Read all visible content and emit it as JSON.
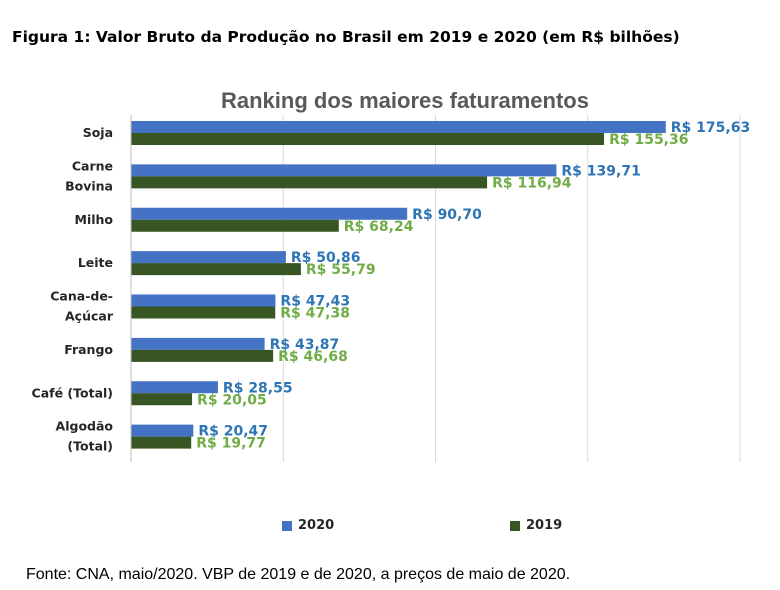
{
  "figure_title": "Figura 1: Valor Bruto da Produção no Brasil em 2019 e 2020 (em R$ bilhões)",
  "source_note": "Fonte: CNA, maio/2020. VBP de 2019 e de 2020, a preços de maio de 2020.",
  "colors": {
    "series_2020": "#4472C4",
    "series_2019": "#375623",
    "label_2020": "#2E75B6",
    "label_2019": "#70AD47",
    "gridline": "#D9D9D9"
  },
  "chart_data": {
    "type": "bar",
    "orientation": "horizontal",
    "title": "Ranking dos maiores faturamentos",
    "categories": [
      [
        "Soja"
      ],
      [
        "Carne",
        "Bovina"
      ],
      [
        "Milho"
      ],
      [
        "Leite"
      ],
      [
        "Cana-de-",
        "Açúcar"
      ],
      [
        "Frango"
      ],
      [
        "Café (Total)"
      ],
      [
        "Algodão",
        "(Total)"
      ]
    ],
    "series": [
      {
        "name": "2020",
        "values": [
          175.63,
          139.71,
          90.7,
          50.86,
          47.43,
          43.87,
          28.55,
          20.47
        ],
        "labels": [
          "R$ 175,63",
          "R$ 139,71",
          "R$ 90,70",
          "R$ 50,86",
          "R$ 47,43",
          "R$ 43,87",
          "R$ 28,55",
          "R$ 20,47"
        ]
      },
      {
        "name": "2019",
        "values": [
          155.36,
          116.94,
          68.24,
          55.79,
          47.38,
          46.68,
          20.05,
          19.77
        ],
        "labels": [
          "R$ 155,36",
          "R$ 116,94",
          "R$ 68,24",
          "R$ 55,79",
          "R$ 47,38",
          "R$ 46,68",
          "R$ 20,05",
          "R$ 19,77"
        ]
      }
    ],
    "xlim": [
      0,
      200
    ],
    "gridlines": [
      50,
      100,
      150,
      200
    ],
    "grid": true,
    "axis_tick_labels_visible": false,
    "legend_position": "bottom"
  }
}
